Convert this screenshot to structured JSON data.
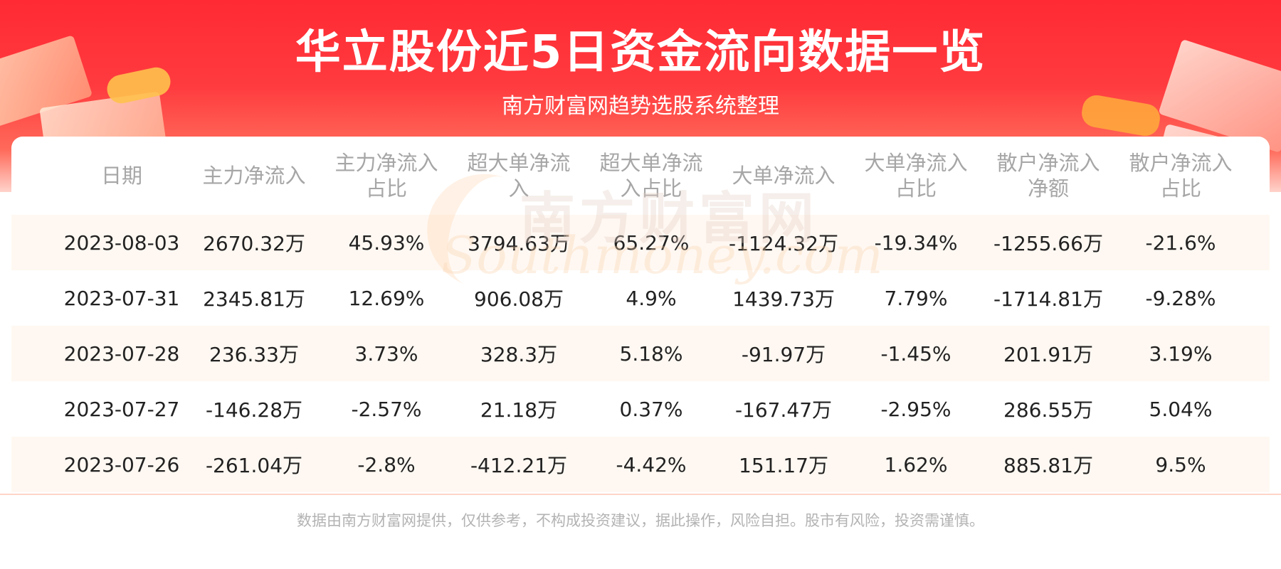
{
  "header": {
    "title": "华立股份近5日资金流向数据一览",
    "subtitle": "南方财富网趋势选股系统整理"
  },
  "watermark": {
    "cn": "南方财富网",
    "en": "Southmoney.com"
  },
  "table": {
    "columns": [
      [
        "日期"
      ],
      [
        "主力净流入"
      ],
      [
        "主力净流入",
        "占比"
      ],
      [
        "超大单净流",
        "入"
      ],
      [
        "超大单净流",
        "入占比"
      ],
      [
        "大单净流入"
      ],
      [
        "大单净流入",
        "占比"
      ],
      [
        "散户净流入",
        "净额"
      ],
      [
        "散户净流入",
        "占比"
      ]
    ],
    "rows": [
      [
        "2023-08-03",
        "2670.32万",
        "45.93%",
        "3794.63万",
        "65.27%",
        "-1124.32万",
        "-19.34%",
        "-1255.66万",
        "-21.6%"
      ],
      [
        "2023-07-31",
        "2345.81万",
        "12.69%",
        "906.08万",
        "4.9%",
        "1439.73万",
        "7.79%",
        "-1714.81万",
        "-9.28%"
      ],
      [
        "2023-07-28",
        "236.33万",
        "3.73%",
        "328.3万",
        "5.18%",
        "-91.97万",
        "-1.45%",
        "201.91万",
        "3.19%"
      ],
      [
        "2023-07-27",
        "-146.28万",
        "-2.57%",
        "21.18万",
        "0.37%",
        "-167.47万",
        "-2.95%",
        "286.55万",
        "5.04%"
      ],
      [
        "2023-07-26",
        "-261.04万",
        "-2.8%",
        "-412.21万",
        "-4.42%",
        "151.17万",
        "1.62%",
        "885.81万",
        "9.5%"
      ]
    ]
  },
  "footer": {
    "disclaimer": "数据由南方财富网提供，仅供参考，不构成投资建议，据此操作，风险自担。股市有风险，投资需谨慎。"
  },
  "colors": {
    "banner_red": "#ff2a34",
    "header_text": "#a6a6a6",
    "stripe": "#fff8f2",
    "cell_text": "#222222"
  }
}
